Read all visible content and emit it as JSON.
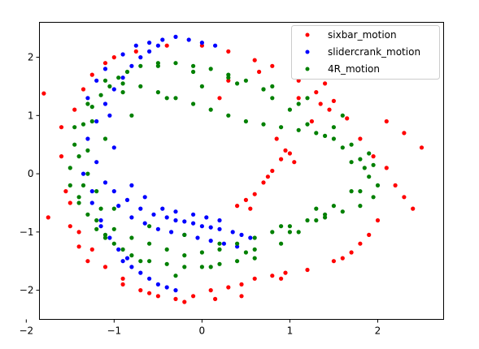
{
  "chart_data": {
    "type": "scatter",
    "title": "",
    "xlabel": "",
    "ylabel": "",
    "xlim": [
      -1.85,
      2.75
    ],
    "ylim": [
      -2.5,
      2.6
    ],
    "xticks": [
      -2,
      -1,
      0,
      1,
      2
    ],
    "yticks": [
      -2,
      -1,
      0,
      1,
      2
    ],
    "grid": false,
    "legend_position": "upper right",
    "series": [
      {
        "name": "sixbar_motion",
        "color": "#ff0000",
        "x": [
          -1.8,
          -1.75,
          -1.6,
          -1.55,
          -1.45,
          -1.5,
          -1.35,
          -1.4,
          -1.25,
          -1.3,
          -1.1,
          -1.0,
          -0.9,
          -0.75,
          -0.6,
          -0.4,
          -0.2,
          0.0,
          0.15,
          0.3,
          0.45,
          0.6,
          0.8,
          0.9,
          1.1,
          1.3,
          1.5,
          1.65,
          1.8,
          1.95,
          2.1,
          2.2,
          2.3,
          2.4,
          2.5,
          2.3,
          2.1,
          2.0,
          1.9,
          1.8,
          1.7,
          1.6,
          1.5,
          1.45,
          1.35,
          1.2,
          1.1,
          0.95,
          0.8,
          0.6,
          0.45,
          0.3,
          0.1,
          -0.1,
          -0.3,
          -0.5,
          -0.7,
          -0.9,
          -1.1,
          -1.25,
          -1.4,
          -1.5,
          -1.6,
          0.5,
          0.6,
          0.7,
          0.8,
          0.9,
          1.0,
          0.55,
          0.75,
          0.95,
          0.4,
          0.85,
          1.05,
          1.25,
          1.4,
          0.3,
          0.2,
          0.65
        ],
        "y": [
          1.38,
          -0.75,
          0.8,
          -0.3,
          1.1,
          -0.9,
          1.45,
          -1.25,
          1.7,
          -1.5,
          1.9,
          2.0,
          -1.9,
          2.1,
          -2.05,
          2.2,
          -2.2,
          2.2,
          -2.15,
          2.1,
          -2.1,
          1.95,
          1.85,
          -1.8,
          1.6,
          1.4,
          1.25,
          0.95,
          0.6,
          0.3,
          0.1,
          -0.2,
          -0.4,
          -0.6,
          0.45,
          0.7,
          0.9,
          -0.8,
          -1.05,
          -1.2,
          -1.35,
          -1.45,
          -1.5,
          1.1,
          1.2,
          -1.65,
          1.3,
          -1.7,
          -1.75,
          -1.8,
          -1.9,
          -1.95,
          -2.0,
          -2.1,
          -2.15,
          -2.1,
          -2.0,
          -1.8,
          -1.6,
          -1.3,
          -1.0,
          -0.5,
          0.3,
          -0.45,
          -0.35,
          -0.15,
          0.05,
          0.25,
          0.35,
          -0.6,
          -0.05,
          0.4,
          -0.55,
          0.6,
          0.2,
          0.9,
          1.55,
          1.6,
          1.3,
          1.75
        ]
      },
      {
        "name": "slidercrank_motion",
        "color": "#0000ff",
        "x": [
          -1.0,
          -0.85,
          -0.7,
          -0.55,
          -0.4,
          -0.3,
          -0.2,
          -0.1,
          0.0,
          0.1,
          0.2,
          0.35,
          0.45,
          0.55,
          -1.2,
          -1.1,
          -0.95,
          -0.8,
          -0.65,
          -0.5,
          -0.35,
          -0.2,
          -0.05,
          0.1,
          0.25,
          0.4,
          -1.3,
          -1.2,
          -1.1,
          -1.0,
          -0.9,
          -0.8,
          -0.7,
          -0.6,
          -0.5,
          -0.9,
          -0.8,
          -0.7,
          -0.6,
          -0.5,
          -0.4,
          -0.3,
          -1.25,
          -1.15,
          -1.05,
          -0.95,
          -0.85,
          -1.35,
          -1.25,
          -1.15,
          -1.05,
          -1.3,
          -1.2,
          -1.1,
          -0.9,
          -0.75,
          -0.6,
          -0.45,
          -0.3,
          -0.15,
          0.0,
          0.15,
          -1.0,
          -0.8,
          -0.65,
          -0.45,
          -0.3,
          -0.1,
          0.05,
          0.2
        ],
        "y": [
          -0.3,
          -0.45,
          -0.6,
          -0.7,
          -0.75,
          -0.8,
          -0.82,
          -0.85,
          -0.9,
          -0.92,
          -0.95,
          -1.0,
          -1.05,
          -1.1,
          0.2,
          -0.15,
          -0.55,
          -0.75,
          -0.85,
          -0.95,
          -1.0,
          -1.05,
          -1.1,
          -1.15,
          -1.2,
          -1.25,
          0.6,
          0.9,
          1.2,
          1.45,
          1.65,
          1.85,
          2.0,
          2.1,
          2.2,
          -1.5,
          -1.6,
          -1.7,
          -1.8,
          -1.9,
          -1.95,
          -2.0,
          -0.3,
          -0.8,
          -1.1,
          -1.3,
          -1.45,
          0.0,
          -0.5,
          -0.9,
          1.0,
          1.3,
          1.6,
          1.8,
          2.05,
          2.2,
          2.25,
          2.3,
          2.35,
          2.3,
          2.25,
          2.2,
          0.45,
          -0.2,
          -0.4,
          -0.6,
          -0.65,
          -0.7,
          -0.75,
          -0.8
        ]
      },
      {
        "name": "4R_motion",
        "color": "#008000",
        "x": [
          -1.5,
          -1.45,
          -1.4,
          -1.35,
          -1.3,
          -1.25,
          -1.2,
          -1.15,
          -1.1,
          -1.05,
          -1.0,
          -0.95,
          -0.9,
          -0.85,
          -0.8,
          -0.7,
          -0.6,
          -0.5,
          -0.4,
          -0.3,
          -0.2,
          -0.1,
          0.0,
          0.1,
          0.2,
          0.3,
          0.4,
          0.5,
          0.6,
          0.7,
          0.8,
          0.9,
          1.0,
          1.1,
          1.2,
          1.3,
          1.4,
          1.5,
          1.6,
          1.7,
          1.8,
          1.85,
          1.9,
          1.95,
          2.0,
          1.95,
          1.9,
          1.8,
          1.7,
          1.6,
          1.5,
          1.4,
          1.3,
          1.2,
          1.1,
          1.0,
          0.9,
          0.8,
          0.7,
          0.6,
          0.5,
          0.4,
          0.3,
          0.2,
          0.1,
          0.0,
          -0.1,
          -0.2,
          -0.3,
          -0.4,
          -0.5,
          -0.6,
          -0.7,
          -0.8,
          -0.9,
          -1.0,
          -1.1,
          -1.2,
          -1.3,
          -1.4,
          -1.45,
          -1.5,
          -1.4,
          -1.3,
          -1.2,
          -1.1,
          -1.0,
          -0.8,
          -0.6,
          -0.4,
          -0.2,
          0.0,
          0.2,
          0.4,
          0.6,
          0.8,
          1.0,
          1.2,
          1.4,
          1.6,
          1.8,
          1.7,
          1.5,
          1.3,
          1.1,
          0.9,
          0.7,
          0.5,
          0.3,
          0.1,
          -0.1,
          -0.3,
          -0.5,
          -0.7,
          -0.9,
          -1.1,
          -1.3,
          -1.35,
          -1.25,
          -1.15
        ],
        "y": [
          0.1,
          0.5,
          -0.4,
          0.85,
          -0.7,
          1.15,
          -0.95,
          1.35,
          -1.1,
          1.5,
          -1.2,
          1.65,
          -1.3,
          1.75,
          -1.4,
          1.85,
          -1.5,
          1.9,
          -1.55,
          1.9,
          -1.6,
          1.85,
          -1.6,
          1.8,
          -1.55,
          1.7,
          -1.5,
          1.6,
          -1.45,
          1.45,
          1.3,
          -1.2,
          1.1,
          -1.0,
          0.85,
          -0.8,
          0.65,
          -0.55,
          0.45,
          -0.3,
          0.25,
          0.1,
          -0.05,
          0.15,
          -0.2,
          -0.4,
          0.35,
          -0.55,
          0.5,
          -0.65,
          0.6,
          -0.75,
          0.7,
          -0.8,
          0.75,
          -0.9,
          0.8,
          -1.0,
          0.85,
          -1.1,
          0.9,
          -1.2,
          1.0,
          -1.3,
          1.1,
          -1.35,
          1.2,
          -1.4,
          1.3,
          -1.3,
          1.4,
          -1.2,
          1.5,
          -1.1,
          1.55,
          -0.95,
          1.6,
          -0.8,
          1.2,
          -0.5,
          0.8,
          -0.2,
          0.3,
          0.0,
          -0.3,
          0.6,
          -0.6,
          1.0,
          -0.9,
          1.3,
          -1.05,
          1.5,
          -1.2,
          1.55,
          -1.3,
          1.5,
          -1.0,
          1.3,
          -0.7,
          1.0,
          -0.3,
          0.2,
          0.8,
          -0.6,
          1.2,
          -0.9,
          1.45,
          -1.35,
          1.65,
          -1.6,
          1.75,
          -1.75,
          1.85,
          -1.5,
          1.4,
          -1.05,
          0.4,
          -0.2,
          0.9,
          -0.6
        ]
      }
    ]
  }
}
